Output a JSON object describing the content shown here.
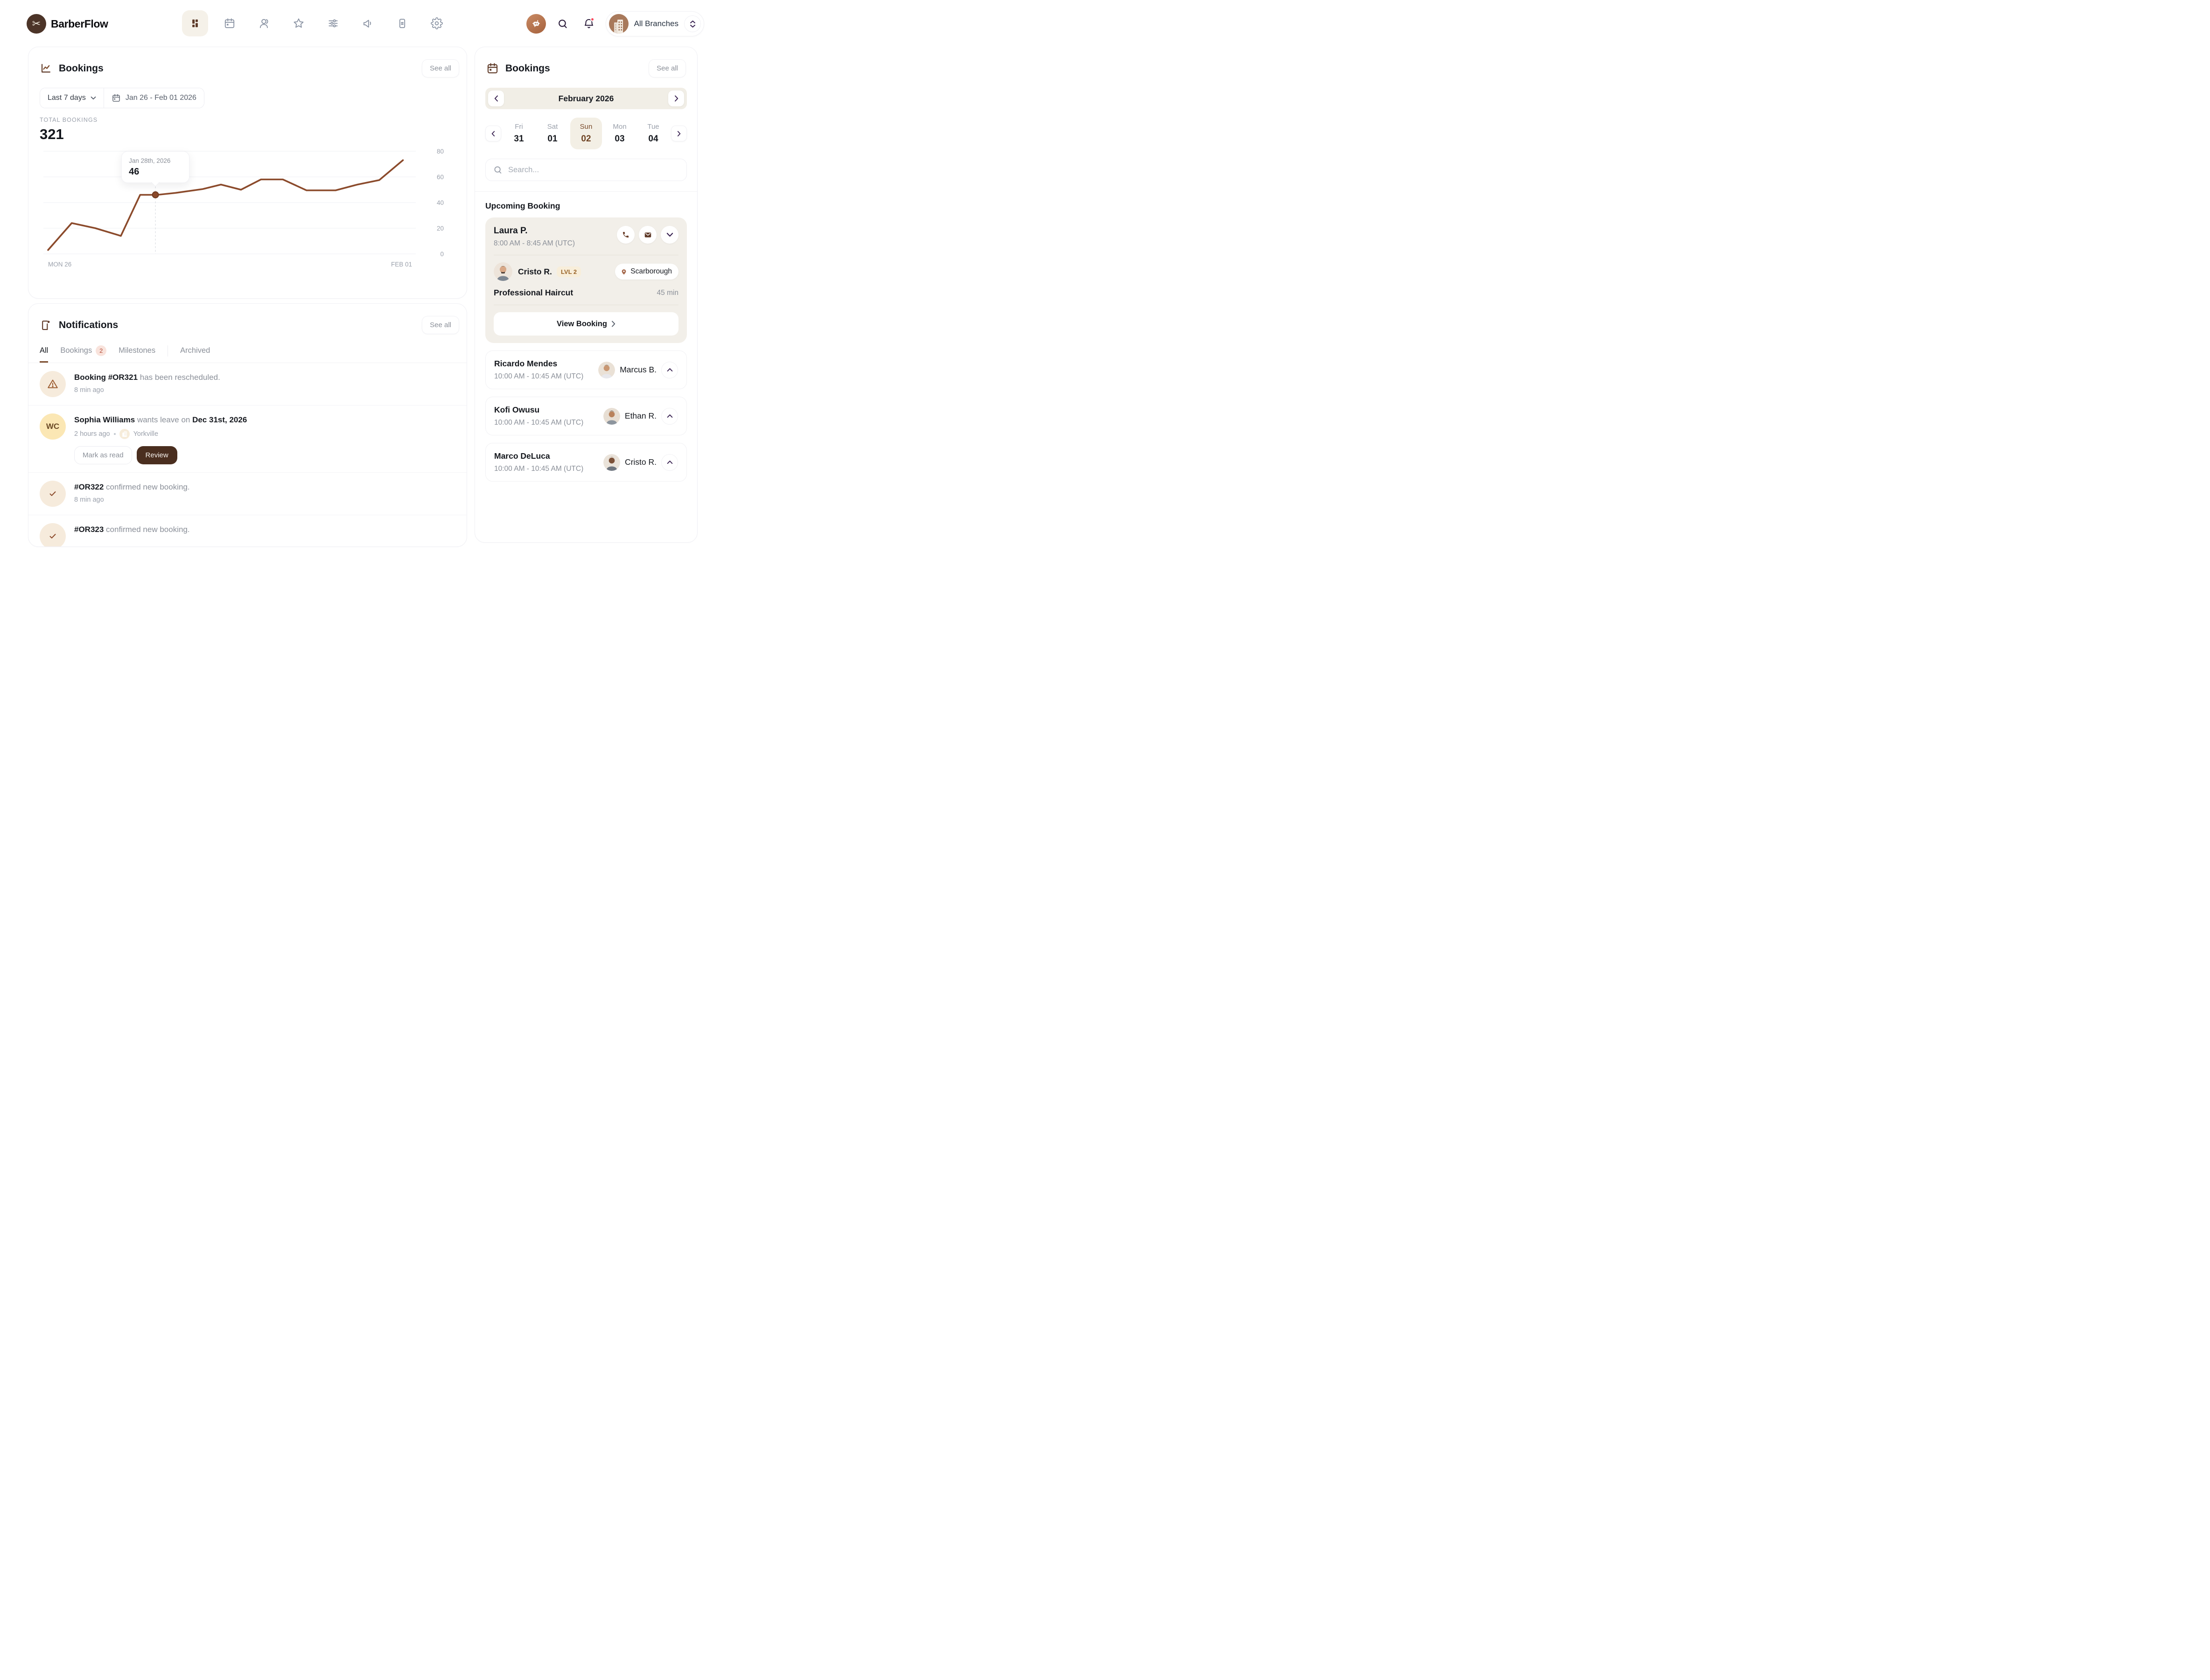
{
  "header": {
    "brand": "BarberFlow",
    "nav_icons": [
      "dashboard",
      "calendar",
      "users",
      "star",
      "sliders",
      "megaphone",
      "document",
      "gear"
    ],
    "branch_selector": "All Branches"
  },
  "bookings_card": {
    "title": "Bookings",
    "see_all": "See all",
    "range_label": "Last 7 days",
    "date_range": "Jan 26 - Feb 01 2026",
    "total_label": "TOTAL BOOKINGS",
    "total_value": "321",
    "chart_data": {
      "type": "line",
      "title": "Total bookings, last 7 days",
      "x_axis_labels": [
        "MON 26",
        "FEB 01"
      ],
      "y_ticks": [
        0,
        20,
        40,
        60,
        80
      ],
      "ylim": [
        0,
        80
      ],
      "grid": "horizontal",
      "series": [
        {
          "name": "Bookings",
          "color": "#8B4A2B",
          "points": [
            {
              "x": 0.0,
              "y": 3
            },
            {
              "x": 0.065,
              "y": 24
            },
            {
              "x": 0.13,
              "y": 20
            },
            {
              "x": 0.2,
              "y": 14
            },
            {
              "x": 0.253,
              "y": 46
            },
            {
              "x": 0.3,
              "y": 46
            },
            {
              "x": 0.35,
              "y": 47.5
            },
            {
              "x": 0.425,
              "y": 50.5
            },
            {
              "x": 0.475,
              "y": 54
            },
            {
              "x": 0.53,
              "y": 50
            },
            {
              "x": 0.585,
              "y": 58
            },
            {
              "x": 0.645,
              "y": 58
            },
            {
              "x": 0.71,
              "y": 49.5
            },
            {
              "x": 0.79,
              "y": 49.5
            },
            {
              "x": 0.85,
              "y": 54
            },
            {
              "x": 0.91,
              "y": 57.5
            },
            {
              "x": 0.975,
              "y": 73
            }
          ]
        }
      ],
      "tooltip": {
        "date": "Jan 28th, 2026",
        "value": 46,
        "x": 0.295
      }
    }
  },
  "notifications": {
    "title": "Notifications",
    "see_all": "See all",
    "tabs": [
      {
        "label": "All"
      },
      {
        "label": "Bookings",
        "badge": "2"
      },
      {
        "label": "Milestones"
      },
      {
        "label": "Archived"
      }
    ],
    "items": [
      {
        "icon": "warning",
        "title_bold": "Booking #OR321",
        "title_rest": " has been rescheduled.",
        "time": "8 min ago"
      },
      {
        "icon": "wc-avatar",
        "avatar_initials": "WC",
        "title_bold": "Sophia Williams",
        "title_mid": " wants leave on ",
        "title_bold2": "Dec 31st, 2026",
        "time": "2 hours ago",
        "branch": "Yorkville",
        "actions": {
          "mark_read": "Mark as read",
          "review": "Review"
        }
      },
      {
        "icon": "check",
        "title_bold": "#OR322",
        "title_rest": " confirmed new booking.",
        "time": "8 min ago"
      },
      {
        "icon": "check",
        "title_bold": "#OR323",
        "title_rest": " confirmed new booking."
      }
    ]
  },
  "right_panel": {
    "title": "Bookings",
    "see_all": "See all",
    "month": "February 2026",
    "days": [
      {
        "dow": "Fri",
        "num": "31"
      },
      {
        "dow": "Sat",
        "num": "01"
      },
      {
        "dow": "Sun",
        "num": "02",
        "selected": true
      },
      {
        "dow": "Mon",
        "num": "03"
      },
      {
        "dow": "Tue",
        "num": "04"
      }
    ],
    "search_placeholder": "Search...",
    "upcoming_label": "Upcoming Booking",
    "featured": {
      "client": "Laura P.",
      "time": "8:00 AM - 8:45 AM (UTC)",
      "barber": "Cristo R.",
      "level": "LVL 2",
      "branch": "Scarborough",
      "service": "Professional Haircut",
      "duration": "45 min",
      "cta": "View Booking"
    },
    "rows": [
      {
        "client": "Ricardo Mendes",
        "time": "10:00 AM - 10:45 AM (UTC)",
        "barber": "Marcus B."
      },
      {
        "client": "Kofi Owusu",
        "time": "10:00 AM - 10:45 AM (UTC)",
        "barber": "Ethan R."
      },
      {
        "client": "Marco DeLuca",
        "time": "10:00 AM - 10:45 AM (UTC)",
        "barber": "Cristo R."
      }
    ]
  },
  "colors": {
    "accent_brown": "#7A4A2B",
    "line_brown": "#8B4A2B",
    "dark_brown_button": "#4A2E1F",
    "beige_card": "#F2EFE9",
    "badge_red": "#B4503C",
    "bell_dot_red": "#F9485C"
  }
}
